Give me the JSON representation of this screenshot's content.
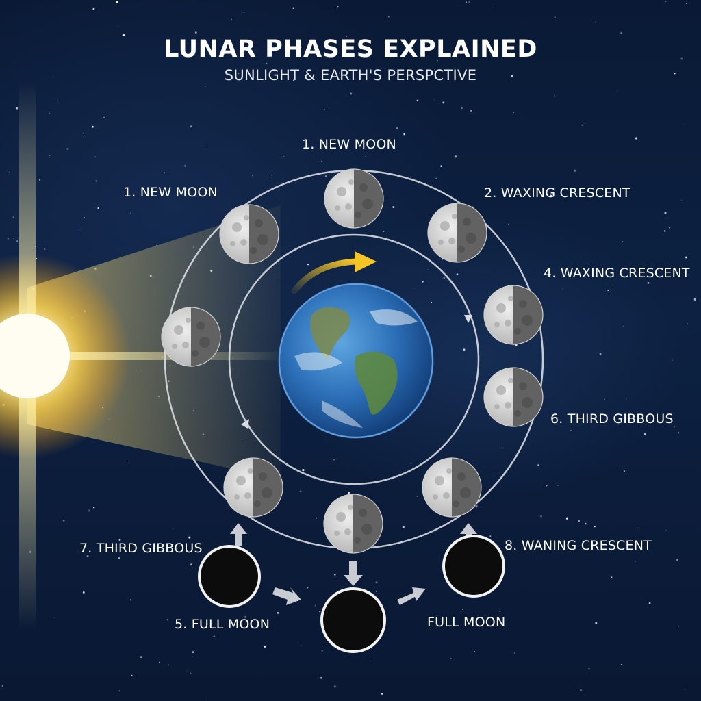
{
  "header": {
    "title": "LUNAR PHASES EXPLAINED",
    "subtitle": "SUNLIGHT & EARTH'S PERSPCTIVE"
  },
  "labels": {
    "top": "1. NEW MOON",
    "left": "1. NEW MOON",
    "upper_right": "2. WAXING CRESCENT",
    "right": "4. WAXING CRESCENT",
    "lower_right": "6. THIRD GIBBOUS",
    "lower_left": "7. THIRD GIBBOUS",
    "bottom_right": "8. WANING CRESCENT",
    "bottom_left": "5. FULL MOON",
    "bottom_center_right": "FULL MOON"
  },
  "colors": {
    "sun": "#fff6cc",
    "orbit": "#d9dde3",
    "motion_arrow": "#f0c020",
    "flow_arrow": "#c8ccd2"
  },
  "icons": {
    "sun": "sun-icon",
    "earth": "earth-icon",
    "moon": "moon-icon",
    "new_moon": "new-moon-icon"
  }
}
